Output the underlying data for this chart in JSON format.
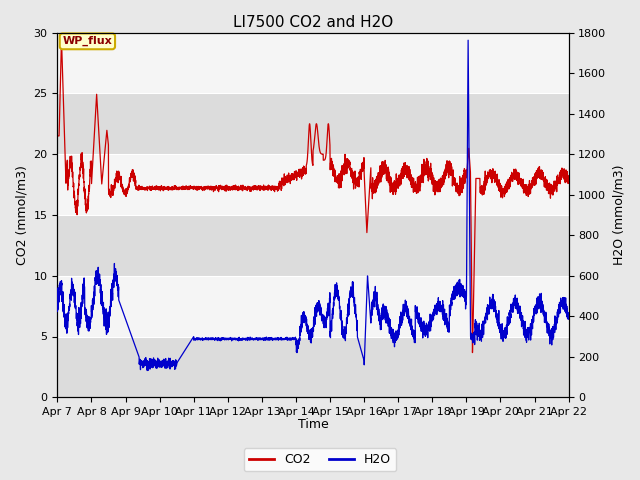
{
  "title": "LI7500 CO2 and H2O",
  "xlabel": "Time",
  "ylabel_left": "CO2 (mmol/m3)",
  "ylabel_right": "H2O (mmol/m3)",
  "ylim_left": [
    0,
    30
  ],
  "ylim_right": [
    0,
    1800
  ],
  "co2_color": "#cc0000",
  "h2o_color": "#0000cc",
  "bg_color": "#e8e8e8",
  "plot_bg_color": "#f5f5f5",
  "band_color": "#dcdcdc",
  "legend_label_co2": "CO2",
  "legend_label_h2o": "H2O",
  "watermark_text": "WP_flux",
  "watermark_bg": "#ffffcc",
  "watermark_border": "#ccaa00",
  "xtick_labels": [
    "Apr 7",
    "Apr 8",
    "Apr 9",
    "Apr 10",
    "Apr 11",
    "Apr 12",
    "Apr 13",
    "Apr 14",
    "Apr 15",
    "Apr 16",
    "Apr 17",
    "Apr 18",
    "Apr 19",
    "Apr 20",
    "Apr 21",
    "Apr 22"
  ],
  "grid_color": "#ffffff",
  "title_fontsize": 11,
  "axis_fontsize": 9,
  "tick_fontsize": 8
}
